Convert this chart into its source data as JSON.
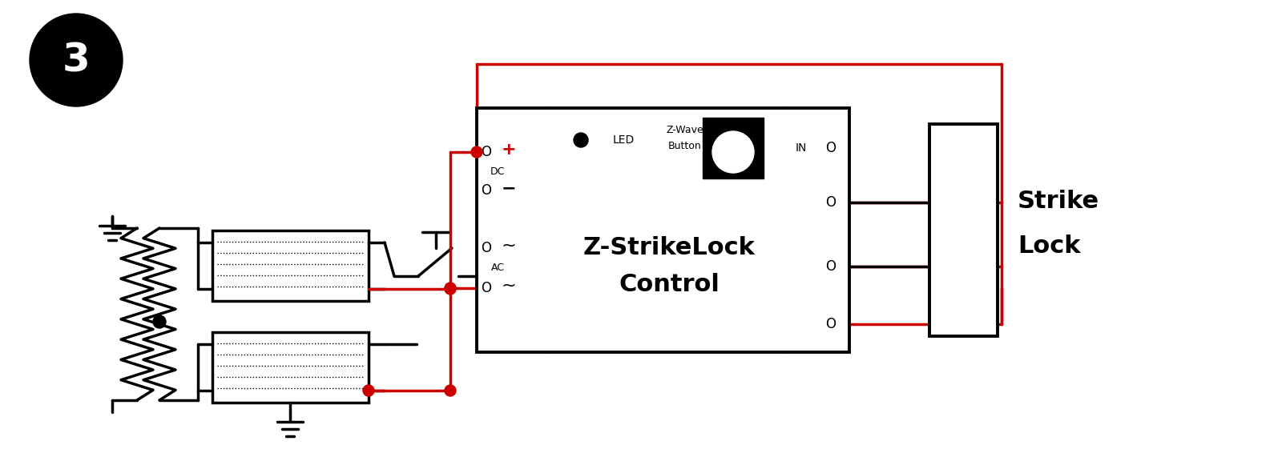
{
  "bg": "#ffffff",
  "K": "#000000",
  "R": "#cc0000",
  "badge": "3",
  "dev1": "Z-StrikeLock",
  "dev2": "Control",
  "led": "●LED",
  "zw1": "Z-Wave",
  "zw2": "Button",
  "in_lbl": "IN",
  "dc_lbl": "DC",
  "ac_lbl": "AC",
  "sl1": "Strike",
  "sl2": "Lock",
  "plus": "+",
  "minus": "−",
  "tilde": "~"
}
